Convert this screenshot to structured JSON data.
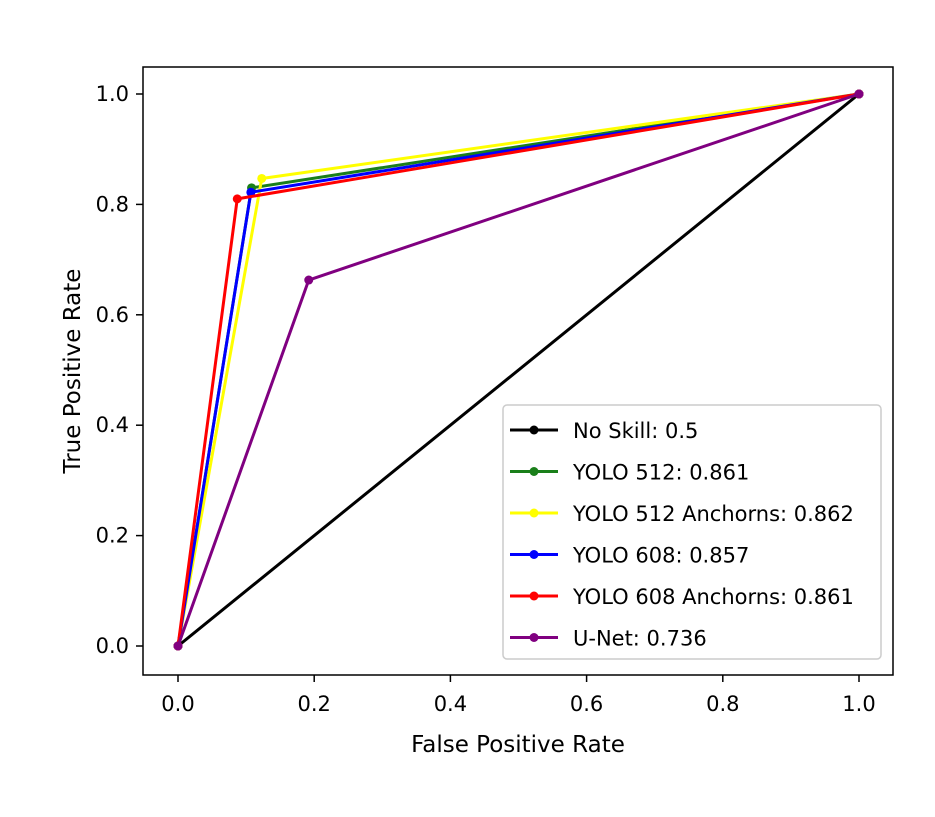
{
  "chart_data": {
    "type": "line",
    "title": "",
    "xlabel": "False Positive Rate",
    "ylabel": "True Positive Rate",
    "xlim": [
      -0.05,
      1.05
    ],
    "ylim": [
      -0.05,
      1.05
    ],
    "xticks": [
      "0.0",
      "0.2",
      "0.4",
      "0.6",
      "0.8",
      "1.0"
    ],
    "yticks": [
      "0.0",
      "0.2",
      "0.4",
      "0.6",
      "0.8",
      "1.0"
    ],
    "grid": false,
    "legend_position": "lower-right",
    "series": [
      {
        "name": "No Skill: 0.5",
        "color": "#000000",
        "x": [
          0,
          1
        ],
        "y": [
          0,
          1
        ]
      },
      {
        "name": "YOLO 512: 0.861",
        "color": "#1a7f1a",
        "x": [
          0,
          0.108,
          1
        ],
        "y": [
          0,
          0.83,
          1
        ]
      },
      {
        "name": "YOLO 512 Anchorns: 0.862",
        "color": "#ffff00",
        "x": [
          0,
          0.123,
          1
        ],
        "y": [
          0,
          0.847,
          1
        ]
      },
      {
        "name": "YOLO 608: 0.857",
        "color": "#0000ff",
        "x": [
          0,
          0.107,
          1
        ],
        "y": [
          0,
          0.822,
          1
        ]
      },
      {
        "name": "YOLO 608 Anchorns: 0.861",
        "color": "#ff0000",
        "x": [
          0,
          0.087,
          1
        ],
        "y": [
          0,
          0.81,
          1
        ]
      },
      {
        "name": "U-Net: 0.736",
        "color": "#800080",
        "x": [
          0,
          0.192,
          1
        ],
        "y": [
          0,
          0.663,
          1
        ]
      }
    ]
  }
}
